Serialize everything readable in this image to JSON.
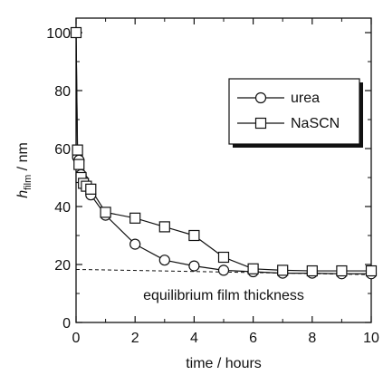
{
  "chart_data": {
    "type": "line",
    "xlabel": "time / hours",
    "ylabel": {
      "main": "h",
      "sub": "film",
      "unit": " / nm"
    },
    "xlim": [
      0,
      10
    ],
    "ylim": [
      0,
      105
    ],
    "x_ticks": [
      0,
      2,
      4,
      6,
      8,
      10
    ],
    "y_ticks": [
      0,
      20,
      40,
      60,
      80,
      100
    ],
    "grid": false,
    "legend_position": "top-right",
    "series": [
      {
        "name": "urea",
        "marker": "circle",
        "x": [
          0,
          0.05,
          0.1,
          0.17,
          0.25,
          0.35,
          0.5,
          1,
          2,
          3,
          4,
          5,
          6,
          7,
          8,
          9,
          10
        ],
        "y": [
          100,
          57,
          56,
          51,
          49,
          47,
          44,
          37,
          27,
          21.5,
          19.5,
          18,
          17.5,
          17,
          17,
          16.8,
          16.8
        ]
      },
      {
        "name": "NaSCN",
        "marker": "square",
        "x": [
          0,
          0.05,
          0.1,
          0.17,
          0.25,
          0.35,
          0.5,
          1,
          2,
          3,
          4,
          5,
          6,
          7,
          8,
          9,
          10
        ],
        "y": [
          100,
          59.5,
          54.5,
          50,
          48,
          47,
          46,
          38,
          36,
          33,
          30,
          22.5,
          18.5,
          18,
          17.8,
          17.8,
          17.8
        ]
      }
    ],
    "reference_line": {
      "label": "equilibrium film thickness",
      "y_start": 18.3,
      "y_end": 16.5,
      "style": "dashed"
    }
  }
}
